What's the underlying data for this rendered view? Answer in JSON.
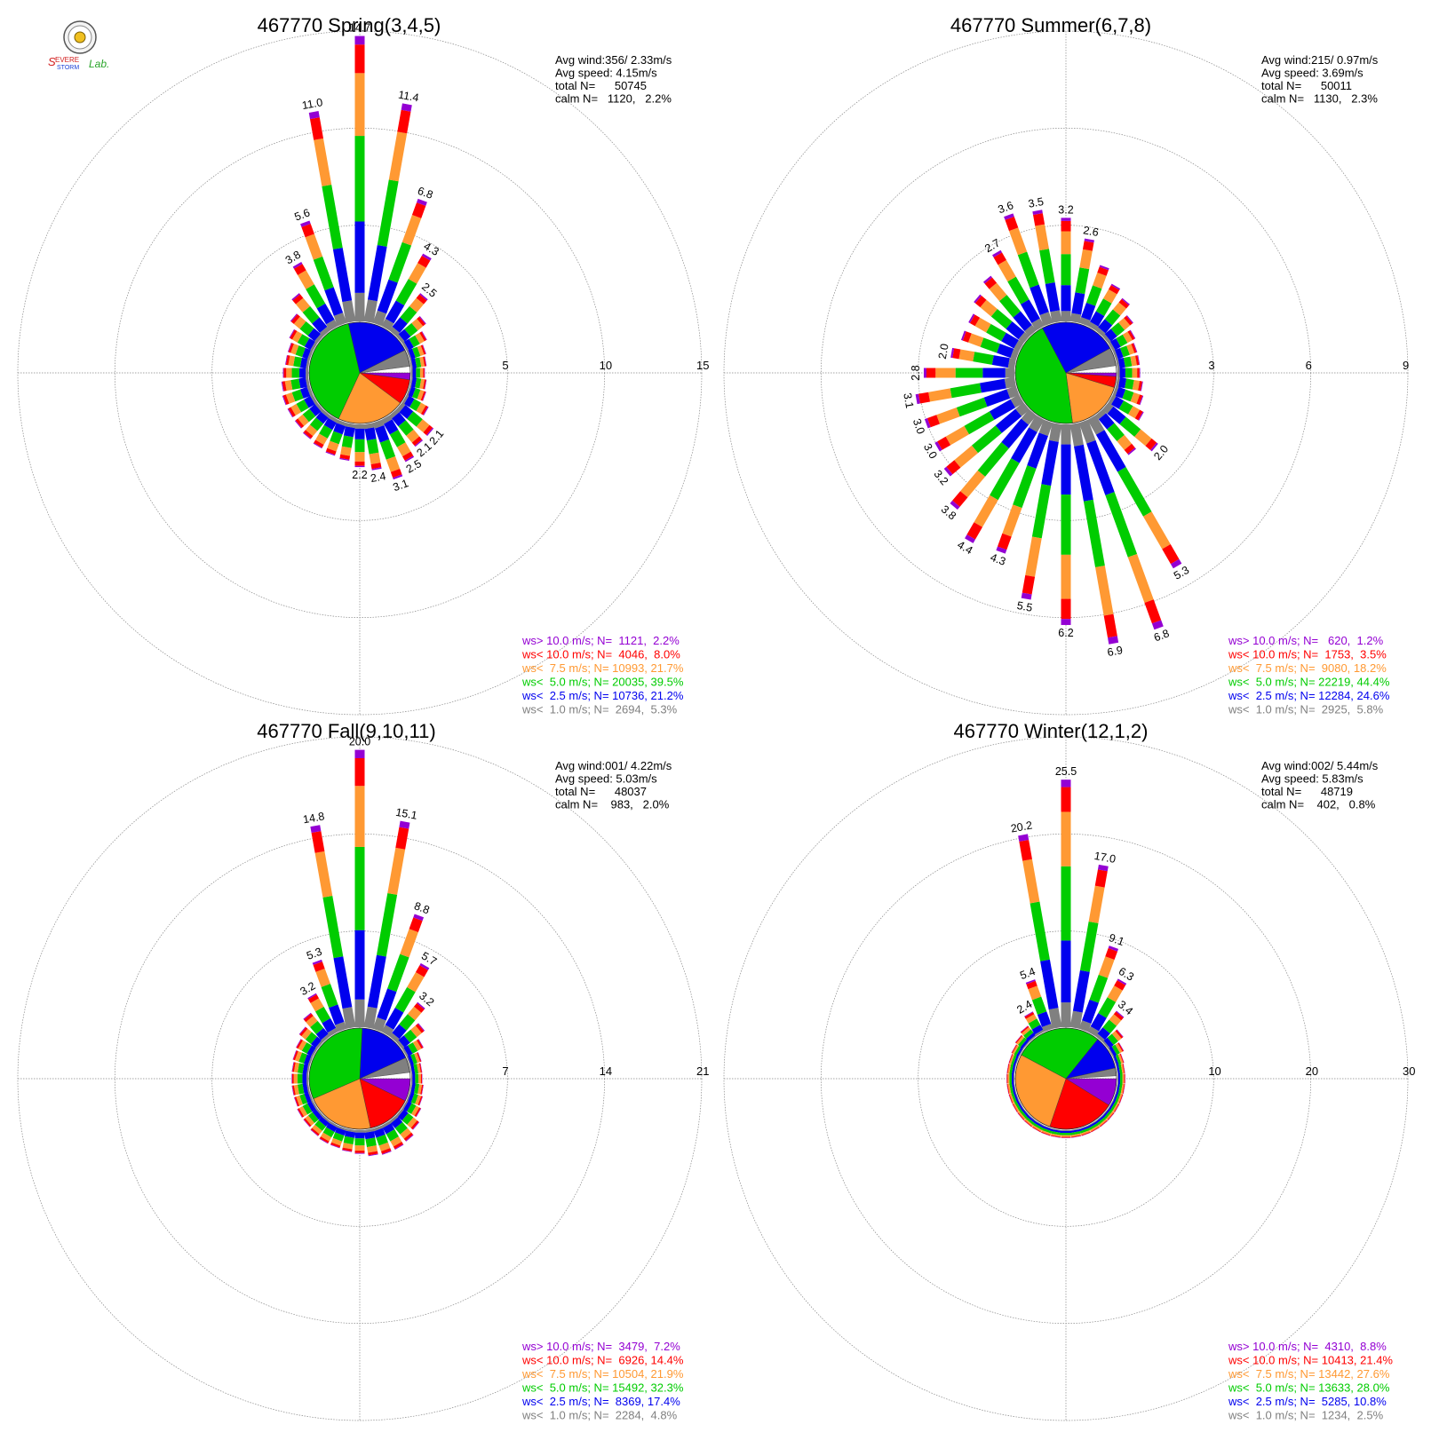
{
  "logo": {
    "text": "Severe Storm Lab.",
    "colors": [
      "#d21e1e",
      "#1a3fd6",
      "#2aa52a"
    ]
  },
  "colors": {
    "gt10": "#9400D3",
    "lt10": "#FF0000",
    "lt75": "#FF9933",
    "lt5": "#00CC00",
    "lt25": "#0000EE",
    "lt1": "#808080",
    "grid": "#888888"
  },
  "chart_data": [
    {
      "type": "wind-rose",
      "title": "467770 Spring(3,4,5)",
      "info": [
        "Avg wind:356/ 2.33m/s",
        "Avg speed: 4.15m/s",
        "total N=      50745",
        "calm N=   1120,   2.2%"
      ],
      "ring_labels": [
        "5",
        "10",
        "15"
      ],
      "rmax": 15,
      "directions": 36,
      "totals": [
        14.7,
        11.4,
        6.8,
        4.3,
        2.5,
        1.6,
        1.2,
        0.9,
        0.8,
        0.7,
        0.8,
        0.9,
        1.3,
        2.1,
        2.1,
        2.5,
        3.1,
        2.4,
        2.2,
        1.9,
        1.8,
        1.7,
        1.6,
        1.5,
        1.5,
        1.5,
        1.4,
        1.3,
        1.2,
        1.2,
        1.4,
        1.8,
        2.5,
        3.8,
        5.6,
        11.0
      ],
      "labeled": [
        0,
        1,
        2,
        3,
        4,
        13,
        14,
        15,
        16,
        17,
        18,
        33,
        34,
        35
      ],
      "pie": [
        2.2,
        8.0,
        21.7,
        39.5,
        21.2,
        5.3
      ],
      "legend": [
        "ws> 10.0 m/s; N=  1121,  2.2%",
        "ws< 10.0 m/s; N=  4046,  8.0%",
        "ws<  7.5 m/s; N= 10993, 21.7%",
        "ws<  5.0 m/s; N= 20035, 39.5%",
        "ws<  2.5 m/s; N= 10736, 21.2%",
        "ws<  1.0 m/s; N=  2694,  5.3%"
      ]
    },
    {
      "type": "wind-rose",
      "title": "467770 Summer(6,7,8)",
      "info": [
        "Avg wind:215/ 0.97m/s",
        "Avg speed: 3.69m/s",
        "total N=      50011",
        "calm N=   1130,   2.3%"
      ],
      "ring_labels": [
        "3",
        "6",
        "9"
      ],
      "rmax": 9,
      "directions": 36,
      "totals": [
        3.2,
        2.6,
        1.9,
        1.5,
        1.3,
        1.0,
        0.8,
        0.7,
        0.7,
        0.7,
        0.8,
        0.9,
        1.1,
        2.0,
        1.6,
        5.3,
        6.8,
        6.9,
        6.2,
        5.5,
        4.3,
        4.4,
        3.8,
        3.2,
        3.0,
        3.0,
        3.1,
        2.8,
        2.0,
        1.8,
        1.8,
        2.0,
        2.2,
        2.7,
        3.6,
        3.5
      ],
      "labeled": [
        0,
        1,
        13,
        15,
        16,
        17,
        18,
        19,
        20,
        21,
        22,
        23,
        24,
        25,
        26,
        27,
        28,
        33,
        34,
        35
      ],
      "pie": [
        1.2,
        3.5,
        18.2,
        44.4,
        24.6,
        5.8
      ],
      "legend": [
        "ws> 10.0 m/s; N=   620,  1.2%",
        "ws< 10.0 m/s; N=  1753,  3.5%",
        "ws<  7.5 m/s; N=  9080, 18.2%",
        "ws<  5.0 m/s; N= 22219, 44.4%",
        "ws<  2.5 m/s; N= 12284, 24.6%",
        "ws<  1.0 m/s; N=  2925,  5.8%"
      ]
    },
    {
      "type": "wind-rose",
      "title": "467770 Fall(9,10,11)",
      "info": [
        "Avg wind:001/ 4.22m/s",
        "Avg speed: 5.03m/s",
        "total N=      48037",
        "calm N=    983,   2.0%"
      ],
      "ring_labels": [
        "7",
        "14",
        "21"
      ],
      "rmax": 21,
      "directions": 36,
      "totals": [
        20.0,
        15.1,
        8.8,
        5.7,
        3.2,
        2.1,
        1.4,
        0.9,
        0.8,
        0.8,
        0.9,
        1.0,
        1.2,
        1.6,
        1.9,
        2.0,
        2.0,
        1.9,
        1.7,
        1.6,
        1.5,
        1.5,
        1.4,
        1.3,
        1.3,
        1.2,
        1.2,
        1.2,
        1.2,
        1.3,
        1.4,
        1.7,
        2.2,
        3.2,
        5.3,
        14.8
      ],
      "labeled": [
        0,
        1,
        2,
        3,
        4,
        33,
        34,
        35
      ],
      "pie": [
        7.2,
        14.4,
        21.9,
        32.3,
        17.4,
        4.8
      ],
      "legend": [
        "ws> 10.0 m/s; N=  3479,  7.2%",
        "ws< 10.0 m/s; N=  6926, 14.4%",
        "ws<  7.5 m/s; N= 10504, 21.9%",
        "ws<  5.0 m/s; N= 15492, 32.3%",
        "ws<  2.5 m/s; N=  8369, 17.4%",
        "ws<  1.0 m/s; N=  2284,  4.8%"
      ]
    },
    {
      "type": "wind-rose",
      "title": "467770 Winter(12,1,2)",
      "info": [
        "Avg wind:002/ 5.44m/s",
        "Avg speed: 5.83m/s",
        "total N=      48719",
        "calm N=    402,   0.8%"
      ],
      "ring_labels": [
        "10",
        "20",
        "30"
      ],
      "rmax": 30,
      "directions": 36,
      "totals": [
        25.5,
        17.0,
        9.1,
        6.3,
        3.4,
        2.0,
        1.3,
        0.9,
        0.8,
        0.8,
        0.8,
        0.8,
        0.8,
        0.8,
        0.8,
        0.8,
        0.8,
        0.8,
        0.8,
        0.8,
        0.8,
        0.8,
        0.8,
        0.8,
        0.8,
        0.8,
        0.8,
        0.8,
        0.8,
        0.8,
        0.9,
        1.1,
        1.4,
        2.4,
        5.4,
        20.2
      ],
      "labeled": [
        0,
        1,
        2,
        3,
        4,
        33,
        34,
        35
      ],
      "pie": [
        8.8,
        21.4,
        27.6,
        28.0,
        10.8,
        2.5
      ],
      "legend": [
        "ws> 10.0 m/s; N=  4310,  8.8%",
        "ws< 10.0 m/s; N= 10413, 21.4%",
        "ws<  7.5 m/s; N= 13442, 27.6%",
        "ws<  5.0 m/s; N= 13633, 28.0%",
        "ws<  2.5 m/s; N=  5285, 10.8%",
        "ws<  1.0 m/s; N=  1234,  2.5%"
      ]
    }
  ]
}
